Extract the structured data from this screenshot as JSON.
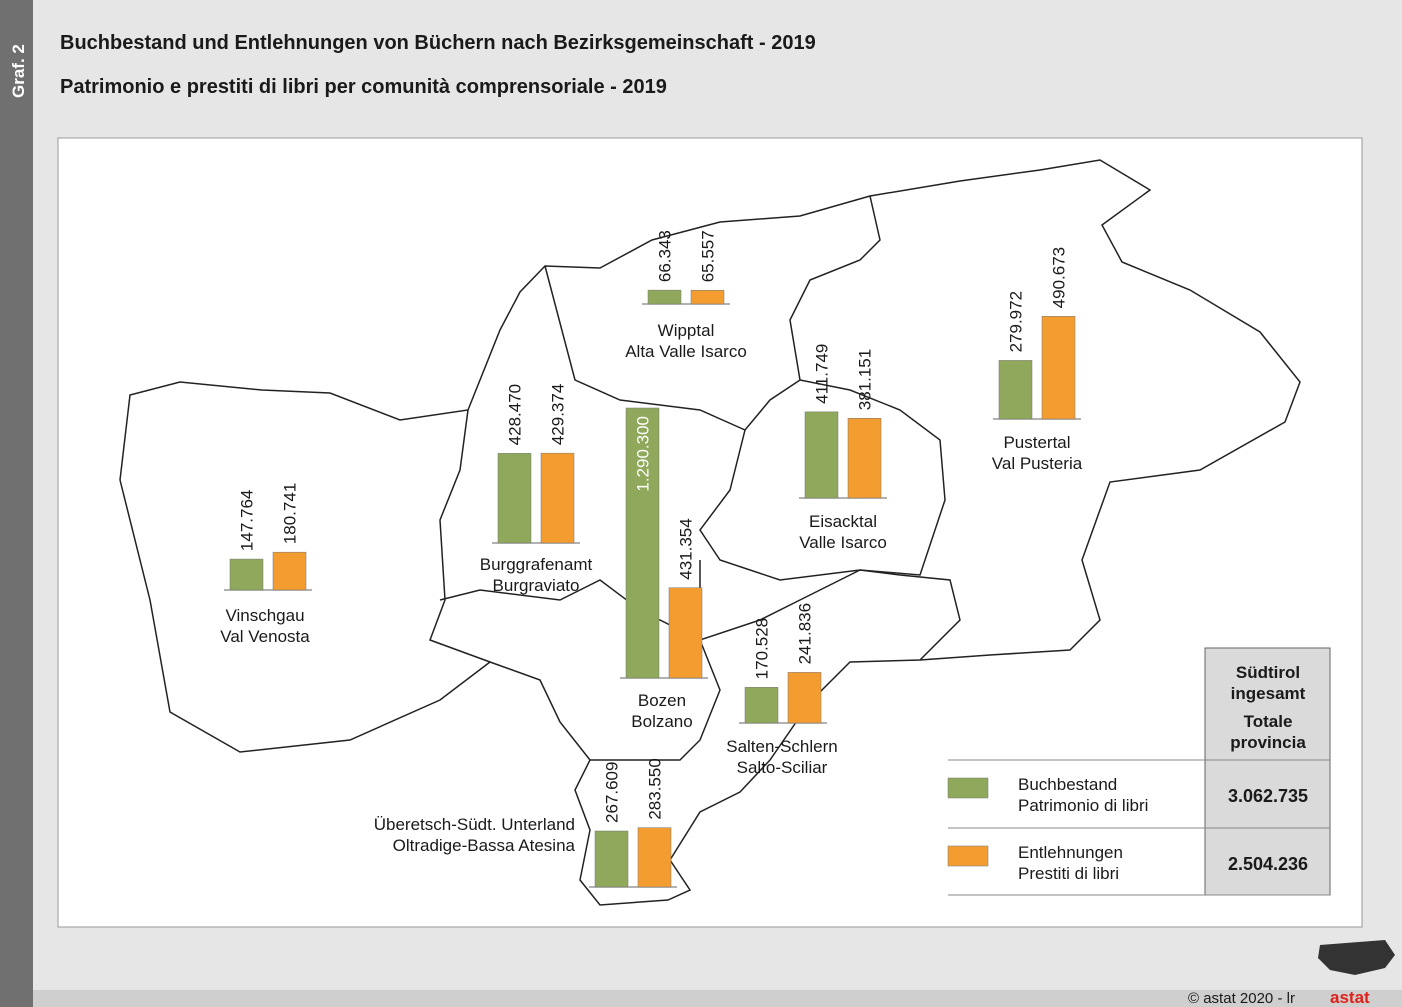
{
  "side_label": "Graf. 2",
  "title": "Buchbestand und Entlehnungen von Büchern nach Bezirksgemeinschaft - 2019",
  "subtitle": "Patrimonio e prestiti di libri per comunità comprensoriale - 2019",
  "series": [
    {
      "name": [
        "Buchbestand",
        "Patrimonio di libri"
      ],
      "color": "#8fa85c"
    },
    {
      "name": [
        "Entlehnungen",
        "Prestiti di libri"
      ],
      "color": "#f39c30"
    }
  ],
  "regions": [
    {
      "name": [
        "Vinschgau",
        "Val Venosta"
      ],
      "values": [
        147764,
        180741
      ],
      "value_labels": [
        "147.764",
        "180.741"
      ]
    },
    {
      "name": [
        "Burggrafenamt",
        "Burgraviato"
      ],
      "values": [
        428470,
        429374
      ],
      "value_labels": [
        "428.470",
        "429.374"
      ]
    },
    {
      "name": [
        "Wipptal",
        "Alta Valle Isarco"
      ],
      "values": [
        66343,
        65557
      ],
      "value_labels": [
        "66.343",
        "65.557"
      ]
    },
    {
      "name": [
        "Bozen",
        "Bolzano"
      ],
      "values": [
        1290300,
        431354
      ],
      "value_labels": [
        "1.290.300",
        "431.354"
      ]
    },
    {
      "name": [
        "Eisacktal",
        "Valle Isarco"
      ],
      "values": [
        411749,
        381151
      ],
      "value_labels": [
        "411.749",
        "381.151"
      ]
    },
    {
      "name": [
        "Pustertal",
        "Val Pusteria"
      ],
      "values": [
        279972,
        490673
      ],
      "value_labels": [
        "279.972",
        "490.673"
      ]
    },
    {
      "name": [
        "Salten-Schlern",
        "Salto-Sciliar"
      ],
      "values": [
        170528,
        241836
      ],
      "value_labels": [
        "170.528",
        "241.836"
      ]
    },
    {
      "name": [
        "Überetsch-Südt. Unterland",
        "Oltradige-Bassa Atesina"
      ],
      "values": [
        267609,
        283550
      ],
      "value_labels": [
        "267.609",
        "283.550"
      ]
    }
  ],
  "totals": {
    "header": [
      [
        "Südtirol",
        "ingesamt"
      ],
      [
        "Totale",
        "provincia"
      ]
    ],
    "values": [
      3062735,
      2504236
    ],
    "value_labels": [
      "3.062.735",
      "2.504.236"
    ]
  },
  "footer": "© astat 2020 - lr",
  "logo": "astat"
}
